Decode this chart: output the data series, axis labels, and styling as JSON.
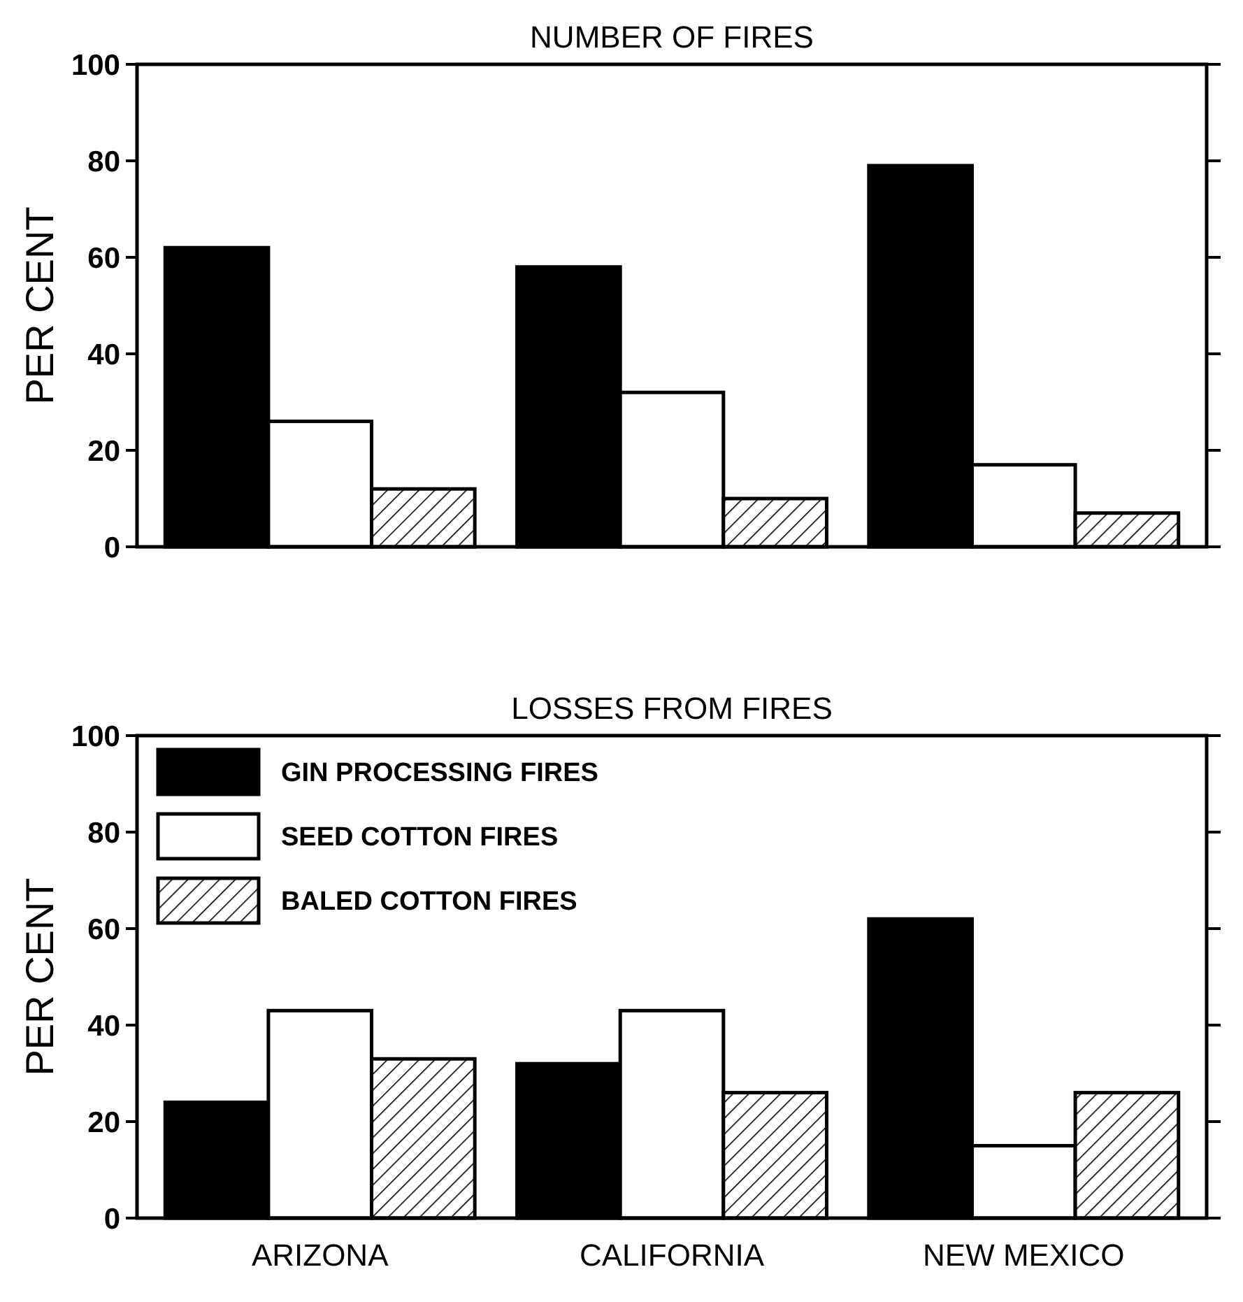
{
  "chart_data": [
    {
      "type": "bar",
      "title": "NUMBER OF FIRES",
      "ylabel": "PER CENT",
      "categories": [
        null,
        null,
        null
      ],
      "series": [
        {
          "color": "#000000",
          "values": [
            62,
            58,
            79
          ]
        },
        {
          "color": "#ffffff",
          "values": [
            26,
            32,
            17
          ]
        },
        {
          "color": "#000000",
          "values": [
            12,
            10,
            7
          ]
        }
      ],
      "ylim": [
        0,
        100
      ],
      "yticks": [
        0,
        20,
        40,
        60,
        80,
        100
      ],
      "grid": false,
      "legend": false,
      "tick_labels": "y"
    },
    {
      "type": "bar",
      "title": "LOSSES FROM FIRES",
      "ylabel": "PER CENT",
      "categories": [
        "ARIZONA",
        "CALIFORNIA",
        "NEW MEXICO"
      ],
      "series": [
        {
          "name": "GIN PROCESSING FIRES",
          "color": "#000000",
          "values": [
            24,
            32,
            62
          ]
        },
        {
          "name": "SEED COTTON FIRES",
          "color": "#ffffff",
          "values": [
            43,
            43,
            15
          ]
        },
        {
          "name": "BALED COTTON FIRES",
          "color": "#000000",
          "values": [
            33,
            26,
            26
          ]
        }
      ],
      "ylim": [
        0,
        100
      ],
      "yticks": [
        0,
        20,
        40,
        60,
        80,
        100
      ],
      "grid": false,
      "legend": "top left"
    }
  ]
}
